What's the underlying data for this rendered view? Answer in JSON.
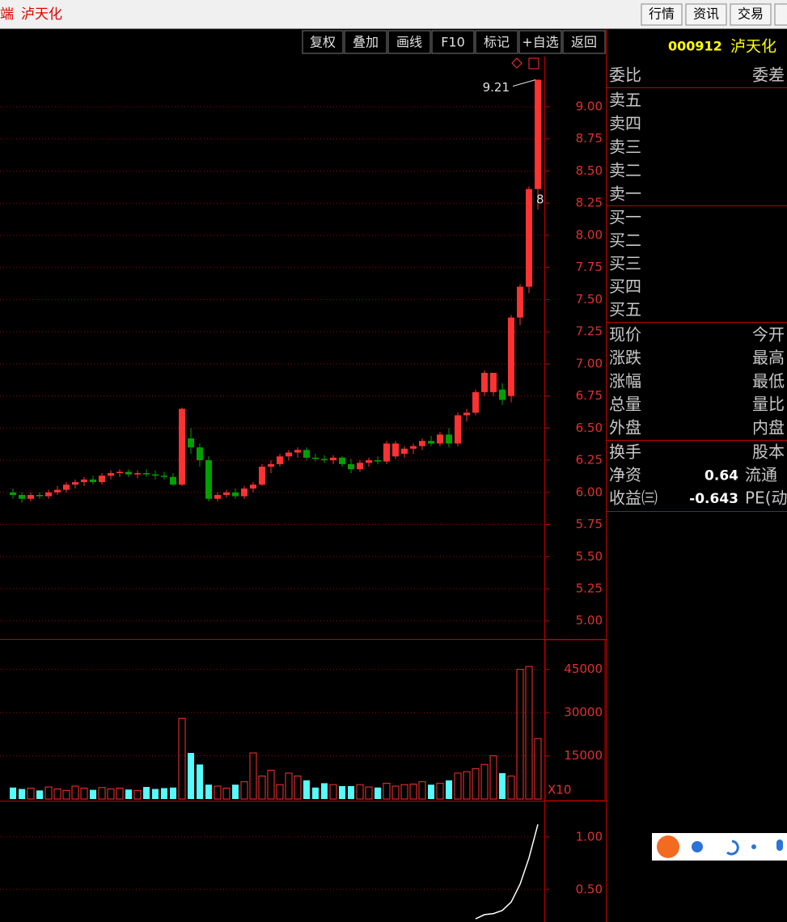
{
  "title_bar": {
    "prefix": "端",
    "stock_name": "泸天化",
    "tabs": [
      "行情",
      "资讯",
      "交易",
      "服"
    ]
  },
  "toolbar": {
    "buttons": [
      "复权",
      "叠加",
      "画线",
      "F10",
      "标记",
      "+自选",
      "返回"
    ],
    "code": "000912",
    "name": "泸天化"
  },
  "chart_data": [
    {
      "type": "candlestick",
      "up_color": "#ff3232",
      "down_color": "#00a000",
      "grid": true,
      "ylim": [
        4.86,
        9.39
      ],
      "yticks": [
        {
          "value": 9,
          "label": "9.00"
        },
        {
          "value": 8.75,
          "label": "8.75"
        },
        {
          "value": 8.5,
          "label": "8.50"
        },
        {
          "value": 8.25,
          "label": "8.25"
        },
        {
          "value": 8,
          "label": "8.00"
        },
        {
          "value": 7.75,
          "label": "7.75"
        },
        {
          "value": 7.5,
          "label": "7.50"
        },
        {
          "value": 7.25,
          "label": "7.25"
        },
        {
          "value": 7,
          "label": "7.00"
        },
        {
          "value": 6.75,
          "label": "6.75"
        },
        {
          "value": 6.5,
          "label": "6.50"
        },
        {
          "value": 6.25,
          "label": "6.25"
        },
        {
          "value": 6,
          "label": "6.00"
        },
        {
          "value": 5.75,
          "label": "5.75"
        },
        {
          "value": 5.5,
          "label": "5.50"
        },
        {
          "value": 5.25,
          "label": "5.25"
        },
        {
          "value": 5,
          "label": "5.00"
        }
      ],
      "annotations": [
        "9.21",
        "8"
      ],
      "open": [
        6.0,
        5.98,
        5.95,
        5.98,
        5.97,
        6.0,
        6.02,
        6.06,
        6.08,
        6.1,
        6.08,
        6.13,
        6.15,
        6.16,
        6.14,
        6.15,
        6.14,
        6.13,
        6.12,
        6.06,
        6.42,
        6.35,
        6.25,
        5.95,
        5.98,
        6.0,
        5.97,
        6.03,
        6.06,
        6.2,
        6.22,
        6.28,
        6.31,
        6.33,
        6.27,
        6.26,
        6.25,
        6.27,
        6.22,
        6.18,
        6.23,
        6.25,
        6.24,
        6.28,
        6.3,
        6.34,
        6.36,
        6.4,
        6.38,
        6.45,
        6.38,
        6.6,
        6.62,
        6.78,
        6.78,
        6.8,
        6.75,
        7.36,
        7.6,
        8.36
      ],
      "high": [
        6.03,
        6.0,
        6.0,
        6.0,
        6.02,
        6.05,
        6.08,
        6.1,
        6.12,
        6.13,
        6.15,
        6.17,
        6.18,
        6.18,
        6.17,
        6.18,
        6.17,
        6.16,
        6.15,
        6.66,
        6.5,
        6.38,
        6.28,
        6.0,
        6.02,
        6.03,
        6.05,
        6.08,
        6.22,
        6.25,
        6.3,
        6.33,
        6.35,
        6.35,
        6.3,
        6.29,
        6.29,
        6.28,
        6.26,
        6.25,
        6.27,
        6.28,
        6.4,
        6.4,
        6.36,
        6.38,
        6.42,
        6.44,
        6.47,
        6.5,
        6.62,
        6.65,
        6.8,
        6.95,
        6.93,
        6.85,
        7.38,
        7.62,
        8.38,
        9.21
      ],
      "low": [
        5.95,
        5.92,
        5.93,
        5.95,
        5.95,
        5.98,
        6.0,
        6.03,
        6.05,
        6.06,
        6.06,
        6.1,
        6.12,
        6.12,
        6.11,
        6.12,
        6.1,
        6.1,
        6.05,
        6.05,
        6.3,
        6.2,
        5.93,
        5.93,
        5.96,
        5.95,
        5.95,
        6.0,
        6.05,
        6.15,
        6.2,
        6.25,
        6.27,
        6.25,
        6.24,
        6.23,
        6.22,
        6.2,
        6.15,
        6.16,
        6.2,
        6.22,
        6.22,
        6.26,
        6.27,
        6.3,
        6.33,
        6.36,
        6.36,
        6.35,
        6.36,
        6.55,
        6.6,
        6.75,
        6.75,
        6.68,
        6.7,
        7.3,
        7.55,
        8.2
      ],
      "close": [
        5.98,
        5.95,
        5.98,
        5.97,
        6.0,
        6.02,
        6.06,
        6.08,
        6.1,
        6.08,
        6.13,
        6.15,
        6.16,
        6.14,
        6.15,
        6.14,
        6.13,
        6.12,
        6.06,
        6.65,
        6.35,
        6.25,
        5.95,
        5.98,
        6.0,
        5.97,
        6.03,
        6.06,
        6.2,
        6.22,
        6.28,
        6.31,
        6.33,
        6.27,
        6.26,
        6.25,
        6.27,
        6.22,
        6.18,
        6.23,
        6.25,
        6.24,
        6.38,
        6.38,
        6.34,
        6.36,
        6.4,
        6.38,
        6.45,
        6.38,
        6.6,
        6.62,
        6.78,
        6.93,
        6.93,
        6.72,
        7.36,
        7.6,
        8.36,
        9.21
      ]
    },
    {
      "type": "bar",
      "unit_label": "X10",
      "grid": true,
      "ylim": [
        0,
        55000
      ],
      "yticks": [
        45000,
        30000,
        15000
      ],
      "values": [
        4000,
        3500,
        3800,
        3000,
        4200,
        3500,
        3000,
        4500,
        3800,
        3200,
        4000,
        3500,
        3800,
        3300,
        3000,
        4200,
        3500,
        3800,
        4000,
        28000,
        16000,
        12000,
        5000,
        4500,
        3800,
        5000,
        6000,
        16000,
        8000,
        10000,
        5000,
        9000,
        8000,
        6500,
        4000,
        5500,
        5000,
        4500,
        4500,
        5000,
        4200,
        4000,
        5500,
        4500,
        5000,
        5200,
        6000,
        5000,
        5500,
        6500,
        9000,
        9500,
        10500,
        12000,
        15000,
        9000,
        8000,
        45000,
        46000,
        21000
      ]
    },
    {
      "type": "line",
      "grid": true,
      "ylim": [
        0.19,
        1.33
      ],
      "yticks": [
        {
          "value": 1,
          "label": "1.00"
        },
        {
          "value": 0.5,
          "label": "0.50"
        }
      ],
      "series": [
        {
          "color": "#ffffff",
          "values": [
            null,
            null,
            null,
            null,
            null,
            null,
            null,
            null,
            null,
            null,
            null,
            null,
            null,
            null,
            null,
            null,
            null,
            null,
            null,
            null,
            null,
            null,
            null,
            null,
            null,
            null,
            null,
            null,
            null,
            null,
            null,
            null,
            null,
            null,
            null,
            null,
            null,
            null,
            null,
            null,
            null,
            null,
            null,
            null,
            null,
            null,
            null,
            null,
            null,
            null,
            null,
            null,
            0.22,
            0.26,
            0.27,
            0.3,
            0.38,
            0.55,
            0.8,
            1.12
          ]
        }
      ]
    }
  ],
  "quote_panel": {
    "header": [
      "委比",
      "委差"
    ],
    "sell": [
      "卖五",
      "卖四",
      "卖三",
      "卖二",
      "卖一"
    ],
    "buy": [
      "买一",
      "买二",
      "买三",
      "买四",
      "买五"
    ],
    "stats": [
      [
        "现价",
        "今开"
      ],
      [
        "涨跌",
        "最高"
      ],
      [
        "涨幅",
        "最低"
      ],
      [
        "总量",
        "量比"
      ],
      [
        "外盘",
        "内盘"
      ]
    ],
    "fundamentals": [
      {
        "label": "换手",
        "right": "股本"
      },
      {
        "label": "净资",
        "value": 0.64,
        "right": "流通"
      },
      {
        "label": "收益㈢",
        "value": -0.643,
        "right": "PE(动)"
      }
    ]
  }
}
